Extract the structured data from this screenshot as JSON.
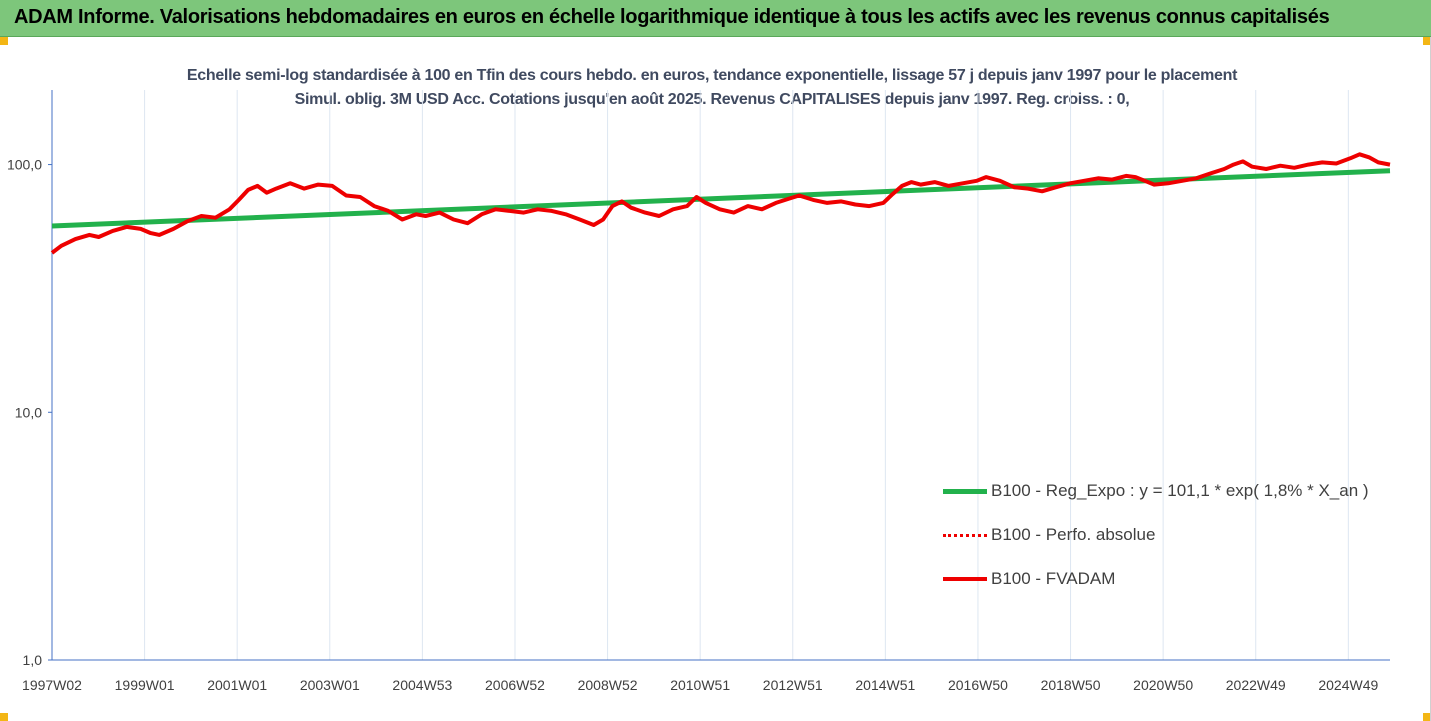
{
  "banner": {
    "title": "ADAM Informe. Valorisations hebdomadaires en euros en échelle logarithmique identique à tous les actifs avec les revenus connus capitalisés"
  },
  "colors": {
    "banner_bg": "#7dc67b",
    "corner_accent": "#f3b615",
    "trend": "#22b14c",
    "fvadam": "#ee0000",
    "perf": "#ee0000",
    "axis": "#4472c4",
    "grid": "#dde6f1",
    "title_text": "#404a60"
  },
  "chart_data": {
    "type": "line",
    "title": "Echelle semi-log standardisée à 100 en Tfin des cours hebdo. en euros, tendance exponentielle, lissage 57 j depuis janv 1997 pour le placement Simul. oblig. 3M USD Acc. Cotations jusqu'en août 2025. Revenus CAPITALISES depuis janv 1997. Reg. croiss. : 0,",
    "y_scale": "log",
    "ylim": [
      1,
      200
    ],
    "y_ticks": [
      {
        "value": 1,
        "label": "1,0"
      },
      {
        "value": 10,
        "label": "10,0"
      },
      {
        "value": 100,
        "label": "100,0"
      }
    ],
    "x_ticks": [
      "1997W02",
      "1999W01",
      "2001W01",
      "2003W01",
      "2004W53",
      "2006W52",
      "2008W52",
      "2010W51",
      "2012W51",
      "2014W51",
      "2016W50",
      "2018W50",
      "2020W50",
      "2022W49",
      "2024W49"
    ],
    "xlim_years": [
      1997.0,
      2025.65
    ],
    "grid": "vertical",
    "legend_position": "lower-right",
    "series": [
      {
        "name": "B100 - Reg_Expo : y = 101,1 * exp( 1,8% *  X_an )",
        "style": "solid-green",
        "points": [
          [
            1997.0,
            56.5
          ],
          [
            2025.65,
            94.5
          ]
        ]
      },
      {
        "name": "B100 - Perfo. absolue",
        "style": "dotted-red",
        "points": []
      },
      {
        "name": "B100 - FVADAM",
        "style": "solid-red",
        "points": [
          [
            1997.0,
            44
          ],
          [
            1997.2,
            47
          ],
          [
            1997.5,
            50
          ],
          [
            1997.8,
            52
          ],
          [
            1998.0,
            51
          ],
          [
            1998.3,
            54
          ],
          [
            1998.6,
            56
          ],
          [
            1998.9,
            55
          ],
          [
            1999.1,
            53
          ],
          [
            1999.3,
            52
          ],
          [
            1999.6,
            55
          ],
          [
            1999.9,
            59
          ],
          [
            2000.2,
            62
          ],
          [
            2000.5,
            61
          ],
          [
            2000.8,
            66
          ],
          [
            2001.0,
            72
          ],
          [
            2001.2,
            79
          ],
          [
            2001.4,
            82
          ],
          [
            2001.6,
            77
          ],
          [
            2001.8,
            80
          ],
          [
            2002.1,
            84
          ],
          [
            2002.4,
            80
          ],
          [
            2002.7,
            83
          ],
          [
            2003.0,
            82
          ],
          [
            2003.3,
            75
          ],
          [
            2003.6,
            74
          ],
          [
            2003.9,
            68
          ],
          [
            2004.2,
            65
          ],
          [
            2004.5,
            60
          ],
          [
            2004.8,
            63
          ],
          [
            2005.0,
            62
          ],
          [
            2005.3,
            64
          ],
          [
            2005.6,
            60
          ],
          [
            2005.9,
            58
          ],
          [
            2006.2,
            63
          ],
          [
            2006.5,
            66
          ],
          [
            2006.8,
            65
          ],
          [
            2007.1,
            64
          ],
          [
            2007.4,
            66
          ],
          [
            2007.7,
            65
          ],
          [
            2008.0,
            63
          ],
          [
            2008.3,
            60
          ],
          [
            2008.6,
            57
          ],
          [
            2008.8,
            60
          ],
          [
            2009.0,
            68
          ],
          [
            2009.2,
            71
          ],
          [
            2009.4,
            67
          ],
          [
            2009.7,
            64
          ],
          [
            2010.0,
            62
          ],
          [
            2010.3,
            66
          ],
          [
            2010.6,
            68
          ],
          [
            2010.8,
            74
          ],
          [
            2011.0,
            70
          ],
          [
            2011.3,
            66
          ],
          [
            2011.6,
            64
          ],
          [
            2011.9,
            68
          ],
          [
            2012.2,
            66
          ],
          [
            2012.5,
            70
          ],
          [
            2012.8,
            73
          ],
          [
            2013.0,
            75
          ],
          [
            2013.3,
            72
          ],
          [
            2013.6,
            70
          ],
          [
            2013.9,
            71
          ],
          [
            2014.2,
            69
          ],
          [
            2014.5,
            68
          ],
          [
            2014.8,
            70
          ],
          [
            2015.0,
            76
          ],
          [
            2015.2,
            82
          ],
          [
            2015.4,
            85
          ],
          [
            2015.6,
            83
          ],
          [
            2015.9,
            85
          ],
          [
            2016.2,
            82
          ],
          [
            2016.5,
            84
          ],
          [
            2016.8,
            86
          ],
          [
            2017.0,
            89
          ],
          [
            2017.3,
            86
          ],
          [
            2017.6,
            81
          ],
          [
            2017.9,
            80
          ],
          [
            2018.2,
            78
          ],
          [
            2018.5,
            81
          ],
          [
            2018.8,
            84
          ],
          [
            2019.1,
            86
          ],
          [
            2019.4,
            88
          ],
          [
            2019.7,
            87
          ],
          [
            2020.0,
            90
          ],
          [
            2020.2,
            89
          ],
          [
            2020.4,
            86
          ],
          [
            2020.6,
            83
          ],
          [
            2020.9,
            84
          ],
          [
            2021.2,
            86
          ],
          [
            2021.5,
            88
          ],
          [
            2021.8,
            92
          ],
          [
            2022.1,
            96
          ],
          [
            2022.3,
            100
          ],
          [
            2022.5,
            103
          ],
          [
            2022.7,
            98
          ],
          [
            2023.0,
            96
          ],
          [
            2023.3,
            99
          ],
          [
            2023.6,
            97
          ],
          [
            2023.9,
            100
          ],
          [
            2024.2,
            102
          ],
          [
            2024.5,
            101
          ],
          [
            2024.8,
            106
          ],
          [
            2025.0,
            110
          ],
          [
            2025.2,
            107
          ],
          [
            2025.4,
            102
          ],
          [
            2025.65,
            100
          ]
        ]
      }
    ]
  }
}
